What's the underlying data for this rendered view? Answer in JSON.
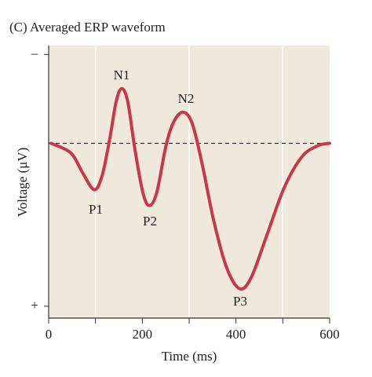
{
  "chart_data": {
    "type": "line",
    "title": "(C) Averaged ERP waveform",
    "x_label": "Time (ms)",
    "y_label": "Voltage (μV)",
    "x": [
      5,
      47,
      72,
      97,
      114,
      131,
      144,
      156,
      169,
      184,
      201,
      215,
      231,
      251,
      268,
      288,
      307,
      328,
      352,
      379,
      407,
      432,
      466,
      503,
      541,
      575,
      600
    ],
    "series": [
      {
        "name": "Averaged ERP",
        "color": "#c8374b",
        "values": [
          0,
          0.64,
          1.96,
          3.13,
          2.2,
          -0.4,
          -2.8,
          -3.7,
          -2.8,
          0.37,
          3.3,
          4.2,
          3.3,
          0.1,
          -1.5,
          -2.1,
          -1.3,
          1.43,
          5.15,
          8.3,
          9.8,
          9.1,
          6.2,
          3.0,
          0.9,
          0.16,
          0
        ]
      }
    ],
    "xlim": [
      0,
      600
    ],
    "xticks": [
      0,
      200,
      400,
      600
    ],
    "minor_xticks": [
      100,
      300,
      500
    ],
    "ylim": [
      11.8,
      -6.6
    ],
    "yticks": [
      {
        "value": -6,
        "label": "–"
      },
      {
        "value": 11,
        "label": "+"
      }
    ],
    "reference_line": 0,
    "annotations": [
      "N1",
      "N2",
      "P1",
      "P2",
      "P3"
    ],
    "grid": true
  }
}
